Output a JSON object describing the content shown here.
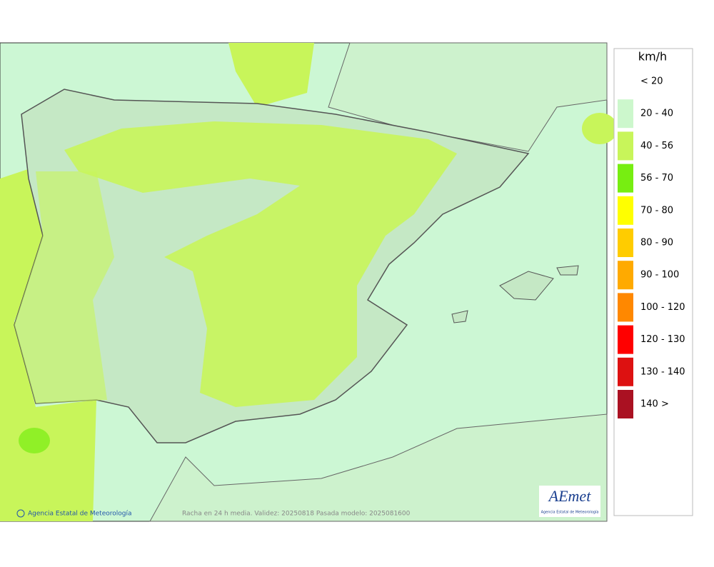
{
  "map": {
    "credit": "Agencia Estatal de Meteorología",
    "caption": "Racha en 24 h media. Validez: 20250818 Pasada modelo: 2025081600",
    "logo": "AEmet",
    "logo_subtitle": "Agencia Estatal de Meteorología"
  },
  "legend": {
    "title": "km/h",
    "items": [
      {
        "label": "< 20",
        "color": null
      },
      {
        "label": "20 - 40",
        "color": "#ccf7cc"
      },
      {
        "label": "40 - 56",
        "color": "#c8f55a"
      },
      {
        "label": "56 - 70",
        "color": "#77ee11"
      },
      {
        "label": "70 - 80",
        "color": "#ffff00"
      },
      {
        "label": "80 - 90",
        "color": "#ffcc00"
      },
      {
        "label": "90 - 100",
        "color": "#ffaa00"
      },
      {
        "label": "100 - 120",
        "color": "#ff8800"
      },
      {
        "label": "120 - 130",
        "color": "#ff0000"
      },
      {
        "label": "130 - 140",
        "color": "#dd1111"
      },
      {
        "label": "140 >",
        "color": "#aa1122"
      }
    ]
  }
}
